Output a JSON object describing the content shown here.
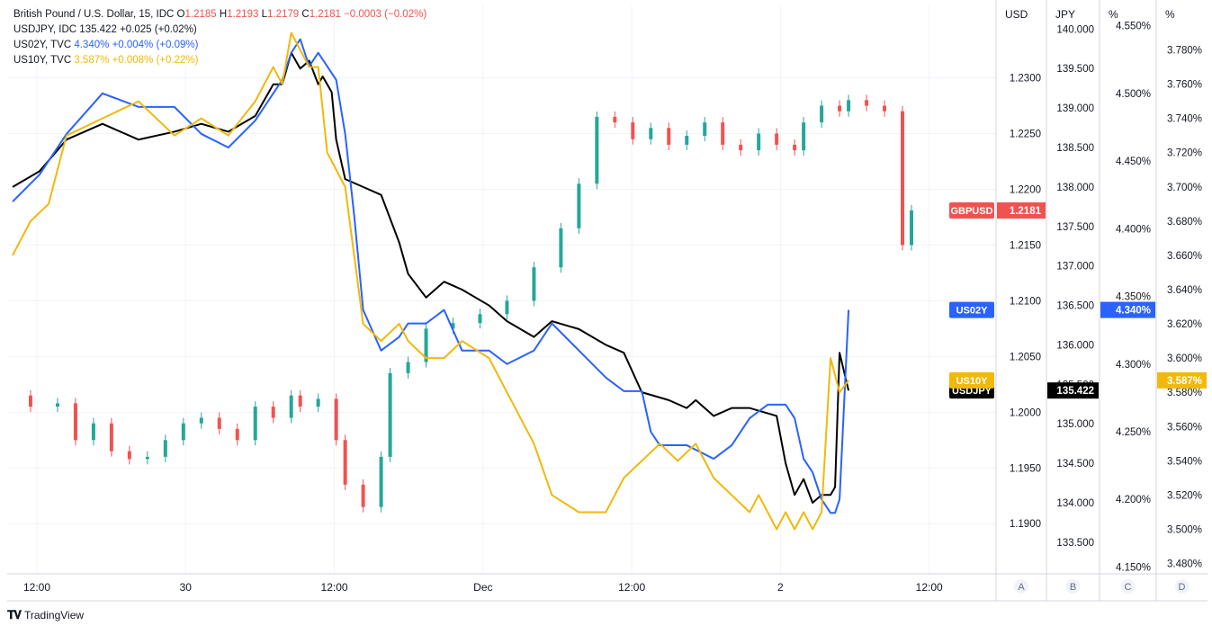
{
  "legend": {
    "gbpusd": {
      "title": "British Pound / U.S. Dollar, 15, IDC",
      "o_label": "O",
      "o": "1.2185",
      "h_label": "H",
      "h": "1.2193",
      "l_label": "L",
      "l": "1.2179",
      "c_label": "C",
      "c": "1.2181",
      "chg": "−0.0003 (−0.02%)"
    },
    "usdjpy": {
      "title": "USDJPY, IDC",
      "value": "135.422",
      "chg": "+0.025 (+0.02%)"
    },
    "us02y": {
      "title": "US02Y, TVC",
      "value": "4.340%",
      "chg": "+0.004% (+0.09%)"
    },
    "us10y": {
      "title": "US10Y, TVC",
      "value": "3.587%",
      "chg": "+0.008% (+0.22%)"
    }
  },
  "footer": {
    "brand": "TradingView"
  },
  "colors": {
    "up": "#26a69a",
    "down": "#ef5350",
    "us02y": "#2962ff",
    "us10y": "#f0b90b",
    "usdjpy": "#000000",
    "grid": "#f0f3fa",
    "axis_text": "#131722"
  },
  "chart_data": {
    "type": "line",
    "x_ticks": [
      "12:00",
      "30",
      "12:00",
      "Dec",
      "12:00",
      "2",
      "12:00"
    ],
    "axes": [
      {
        "id": "A",
        "title": "USD",
        "ticks": [
          "1.2300",
          "1.2250",
          "1.2200",
          "1.2150",
          "1.2100",
          "1.2050",
          "1.2000",
          "1.1950",
          "1.1900"
        ],
        "ylim": [
          1.1855,
          1.2365
        ]
      },
      {
        "id": "B",
        "title": "JPY",
        "ticks": [
          "140.000",
          "139.500",
          "139.000",
          "138.500",
          "138.000",
          "137.500",
          "137.000",
          "136.500",
          "136.000",
          "135.500",
          "135.000",
          "134.500",
          "134.000",
          "133.500"
        ],
        "ylim": [
          133.1,
          140.3
        ]
      },
      {
        "id": "C",
        "title": "%",
        "ticks": [
          "4.550%",
          "4.500%",
          "4.450%",
          "4.400%",
          "4.350%",
          "4.300%",
          "4.250%",
          "4.200%",
          "4.150%"
        ],
        "ylim": [
          4.145,
          4.565
        ]
      },
      {
        "id": "D",
        "title": "%",
        "ticks": [
          "3.800%",
          "3.780%",
          "3.760%",
          "3.740%",
          "3.720%",
          "3.700%",
          "3.680%",
          "3.660%",
          "3.640%",
          "3.620%",
          "3.600%",
          "3.580%",
          "3.560%",
          "3.540%",
          "3.520%",
          "3.500%",
          "3.480%"
        ],
        "ylim": [
          3.474,
          3.806
        ]
      }
    ],
    "series": [
      {
        "name": "GBPUSD",
        "axis": "A",
        "type": "candlestick",
        "last_label": "1.2181",
        "x": [
          0,
          0.02,
          0.05,
          0.07,
          0.09,
          0.11,
          0.13,
          0.15,
          0.17,
          0.19,
          0.21,
          0.23,
          0.25,
          0.27,
          0.29,
          0.31,
          0.32,
          0.34,
          0.36,
          0.37,
          0.39,
          0.41,
          0.42,
          0.44,
          0.46,
          0.49,
          0.52,
          0.55,
          0.58,
          0.61,
          0.63,
          0.65,
          0.67,
          0.69,
          0.71,
          0.73,
          0.75,
          0.77,
          0.79,
          0.81,
          0.83,
          0.85,
          0.87,
          0.88,
          0.9,
          0.92,
          0.93,
          0.95,
          0.97,
          0.99,
          1
        ],
        "values": [
          1.2015,
          1.2005,
          1.2008,
          1.1975,
          1.199,
          1.1965,
          1.1958,
          1.196,
          1.1975,
          1.199,
          1.1995,
          1.1985,
          1.1975,
          1.2005,
          1.1995,
          1.2015,
          1.2005,
          1.2012,
          1.1975,
          1.1935,
          1.1915,
          1.196,
          1.2035,
          1.2045,
          1.2075,
          1.208,
          1.2088,
          1.21,
          1.213,
          1.2165,
          1.2205,
          1.2265,
          1.226,
          1.2245,
          1.2255,
          1.224,
          1.2248,
          1.226,
          1.224,
          1.2235,
          1.225,
          1.224,
          1.2235,
          1.226,
          1.2275,
          1.227,
          1.228,
          1.2275,
          1.227,
          1.215,
          1.2181
        ]
      },
      {
        "name": "USDJPY",
        "axis": "B",
        "type": "line",
        "last_label": "135.422",
        "x": [
          0,
          0.03,
          0.06,
          0.1,
          0.14,
          0.18,
          0.21,
          0.24,
          0.27,
          0.29,
          0.3,
          0.31,
          0.32,
          0.33,
          0.34,
          0.345,
          0.355,
          0.36,
          0.37,
          0.39,
          0.41,
          0.43,
          0.44,
          0.46,
          0.48,
          0.5,
          0.53,
          0.55,
          0.58,
          0.6,
          0.63,
          0.66,
          0.68,
          0.7,
          0.73,
          0.75,
          0.76,
          0.78,
          0.8,
          0.82,
          0.85,
          0.86,
          0.87,
          0.88,
          0.89,
          0.9,
          0.91,
          0.915,
          0.92,
          0.93
        ],
        "values": [
          138.0,
          138.2,
          138.6,
          138.8,
          138.6,
          138.7,
          138.8,
          138.7,
          138.9,
          139.3,
          139.3,
          139.7,
          139.5,
          139.6,
          139.3,
          139.4,
          139.2,
          138.6,
          138.1,
          138.0,
          137.9,
          137.3,
          136.9,
          136.6,
          136.8,
          136.7,
          136.5,
          136.3,
          136.1,
          136.3,
          136.2,
          136.0,
          135.9,
          135.4,
          135.3,
          135.2,
          135.3,
          135.1,
          135.2,
          135.2,
          135.1,
          134.5,
          134.1,
          134.3,
          134.0,
          134.1,
          134.1,
          134.2,
          135.9,
          135.422
        ]
      },
      {
        "name": "US02Y",
        "axis": "C",
        "type": "line",
        "last_label": "4.340%",
        "x": [
          0,
          0.03,
          0.06,
          0.1,
          0.14,
          0.18,
          0.21,
          0.24,
          0.27,
          0.29,
          0.3,
          0.31,
          0.32,
          0.33,
          0.34,
          0.35,
          0.36,
          0.37,
          0.38,
          0.39,
          0.41,
          0.43,
          0.44,
          0.46,
          0.48,
          0.5,
          0.53,
          0.55,
          0.58,
          0.6,
          0.63,
          0.66,
          0.68,
          0.7,
          0.71,
          0.72,
          0.75,
          0.78,
          0.8,
          0.82,
          0.84,
          0.85,
          0.86,
          0.87,
          0.88,
          0.89,
          0.9,
          0.91,
          0.915,
          0.92,
          0.93
        ],
        "values": [
          4.42,
          4.44,
          4.47,
          4.5,
          4.49,
          4.49,
          4.47,
          4.46,
          4.48,
          4.5,
          4.51,
          4.53,
          4.54,
          4.52,
          4.53,
          4.52,
          4.51,
          4.47,
          4.41,
          4.34,
          4.31,
          4.32,
          4.33,
          4.33,
          4.34,
          4.31,
          4.31,
          4.3,
          4.31,
          4.33,
          4.31,
          4.29,
          4.28,
          4.28,
          4.25,
          4.24,
          4.24,
          4.23,
          4.24,
          4.26,
          4.27,
          4.27,
          4.27,
          4.26,
          4.23,
          4.22,
          4.2,
          4.19,
          4.19,
          4.2,
          4.34
        ]
      },
      {
        "name": "US10Y",
        "axis": "D",
        "type": "line",
        "last_label": "3.587%",
        "x": [
          0,
          0.02,
          0.04,
          0.06,
          0.1,
          0.14,
          0.18,
          0.21,
          0.24,
          0.27,
          0.29,
          0.3,
          0.31,
          0.32,
          0.33,
          0.34,
          0.35,
          0.36,
          0.37,
          0.38,
          0.39,
          0.41,
          0.43,
          0.44,
          0.46,
          0.48,
          0.5,
          0.53,
          0.55,
          0.58,
          0.6,
          0.63,
          0.66,
          0.68,
          0.7,
          0.72,
          0.74,
          0.76,
          0.78,
          0.8,
          0.82,
          0.83,
          0.85,
          0.86,
          0.87,
          0.88,
          0.89,
          0.9,
          0.91,
          0.92,
          0.93
        ],
        "values": [
          3.66,
          3.68,
          3.69,
          3.73,
          3.74,
          3.75,
          3.73,
          3.74,
          3.73,
          3.75,
          3.77,
          3.76,
          3.79,
          3.78,
          3.77,
          3.77,
          3.72,
          3.71,
          3.7,
          3.66,
          3.62,
          3.61,
          3.62,
          3.61,
          3.6,
          3.6,
          3.61,
          3.6,
          3.58,
          3.55,
          3.52,
          3.51,
          3.51,
          3.53,
          3.54,
          3.55,
          3.54,
          3.55,
          3.53,
          3.52,
          3.51,
          3.52,
          3.5,
          3.51,
          3.5,
          3.51,
          3.5,
          3.51,
          3.6,
          3.58,
          3.587
        ]
      }
    ]
  }
}
